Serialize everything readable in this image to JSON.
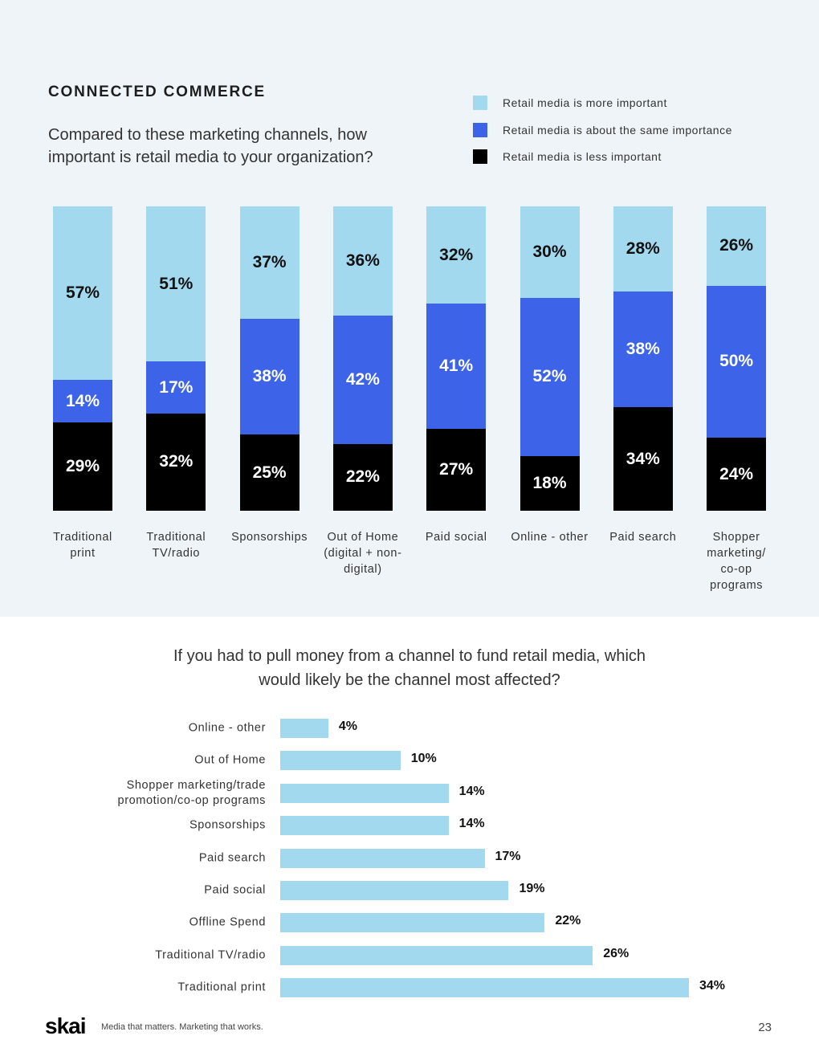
{
  "header": {
    "section": "CONNECTED COMMERCE"
  },
  "chart_data": [
    {
      "type": "stacked-bar",
      "title": "Compared to these marketing channels, how important is retail media to your organization?",
      "categories": [
        "Traditional print",
        "Traditional TV/radio",
        "Sponsorships",
        "Out of Home (digital + non-digital)",
        "Paid social",
        "Online - other",
        "Paid search",
        "Shopper marketing/ co-op programs"
      ],
      "ylim": [
        0,
        100
      ],
      "series": [
        {
          "name": "Retail media is more important",
          "color": "#a3d9ef",
          "values": [
            57,
            51,
            37,
            36,
            32,
            30,
            28,
            26
          ],
          "value_labels": [
            "57%",
            "51%",
            "37%",
            "36%",
            "32%",
            "30%",
            "28%",
            "26%"
          ]
        },
        {
          "name": "Retail media is about the same importance",
          "color": "#3d64e8",
          "values": [
            14,
            17,
            38,
            42,
            41,
            52,
            38,
            50
          ],
          "value_labels": [
            "14%",
            "17%",
            "38%",
            "42%",
            "41%",
            "52%",
            "38%",
            "50%"
          ]
        },
        {
          "name": "Retail media is less important",
          "color": "#000000",
          "values": [
            29,
            32,
            25,
            22,
            27,
            18,
            34,
            24
          ],
          "value_labels": [
            "29%",
            "32%",
            "25%",
            "22%",
            "27%",
            "18%",
            "34%",
            "24%"
          ]
        }
      ]
    },
    {
      "type": "hbar",
      "title": "If you had to pull money from a channel to fund retail media, which would likely be the channel most affected?",
      "categories": [
        "Online - other",
        "Out of Home",
        "Shopper marketing/trade promotion/co-op programs",
        "Sponsorships",
        "Paid search",
        "Paid social",
        "Offline Spend",
        "Traditional TV/radio",
        "Traditional print"
      ],
      "values": [
        4,
        10,
        14,
        14,
        17,
        19,
        22,
        26,
        34
      ],
      "value_labels": [
        "4%",
        "10%",
        "14%",
        "14%",
        "17%",
        "19%",
        "22%",
        "26%",
        "34%"
      ],
      "color": "#a3d9ef",
      "xlim": [
        0,
        34
      ]
    }
  ],
  "footer": {
    "logo": "skai",
    "tagline": "Media that matters. Marketing that works.",
    "page": "23"
  }
}
